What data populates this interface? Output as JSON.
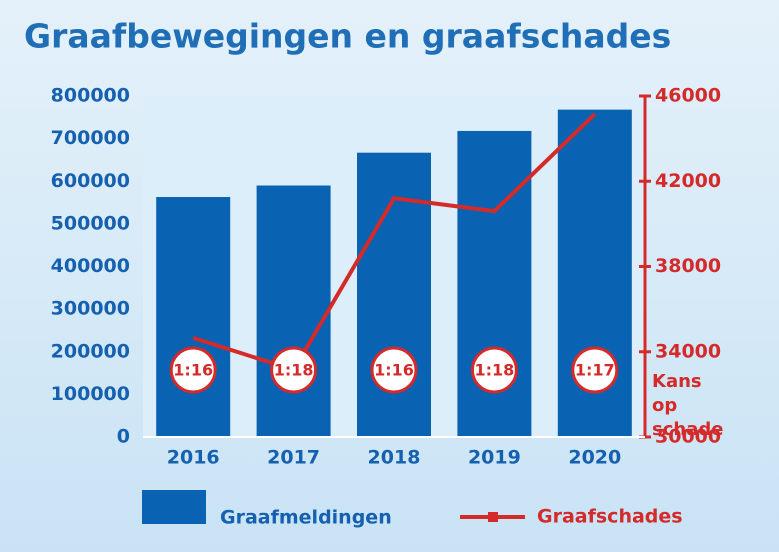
{
  "chart_data": {
    "type": "bar-line",
    "title": "Graafbewegingen en graafschades",
    "categories": [
      "2016",
      "2017",
      "2018",
      "2019",
      "2020"
    ],
    "series": [
      {
        "name": "Graafmeldingen",
        "type": "bar",
        "color": "#0a62b2",
        "values": [
          563000,
          590000,
          667000,
          718000,
          768000
        ]
      },
      {
        "name": "Graafschades",
        "type": "line",
        "axis": "y2",
        "color": "#d42a2a",
        "values": [
          34650,
          33150,
          41200,
          40600,
          45150
        ]
      }
    ],
    "annotations": [
      "1:16",
      "1:18",
      "1:16",
      "1:18",
      "1:17"
    ],
    "y2label": "Kans op schade",
    "ylim": [
      0,
      800000
    ],
    "yticks": [
      0,
      100000,
      200000,
      300000,
      400000,
      500000,
      600000,
      700000,
      800000
    ],
    "y2lim": [
      30000,
      46000
    ],
    "y2ticks": [
      30000,
      34000,
      38000,
      42000,
      46000
    ]
  }
}
